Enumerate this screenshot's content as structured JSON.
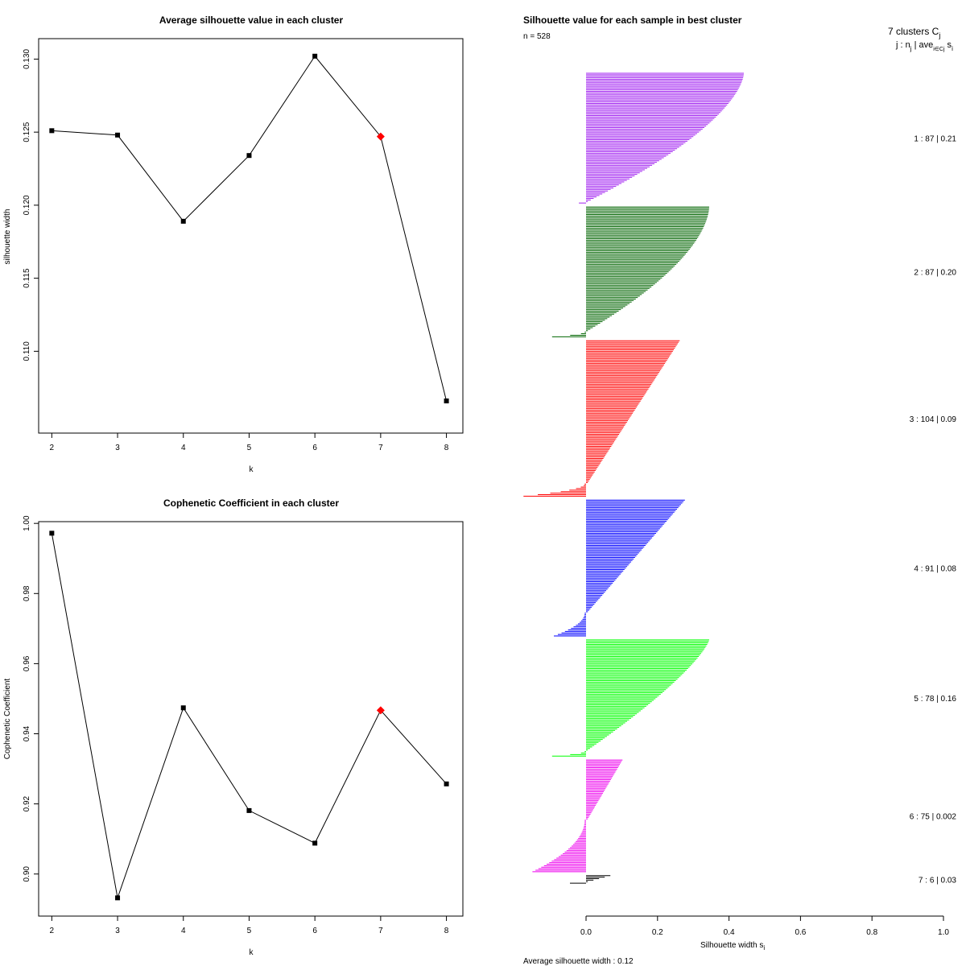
{
  "chart_data": [
    {
      "id": "avg_sil",
      "type": "line",
      "title": "Average silhouette value in each cluster",
      "xlabel": "k",
      "ylabel": "silhouette width",
      "x": [
        2,
        3,
        4,
        5,
        6,
        7,
        8
      ],
      "y": [
        0.1251,
        0.1248,
        0.1189,
        0.1234,
        0.1302,
        0.1247,
        0.1066
      ],
      "highlight_x": 7,
      "highlight_color": "#ff0000",
      "xlim": [
        1.8,
        8.25
      ],
      "ylim": [
        0.1044,
        0.1314
      ],
      "xticks": [
        2,
        3,
        4,
        5,
        6,
        7,
        8
      ],
      "xtick_labels": [
        "2",
        "3",
        "4",
        "5",
        "6",
        "7",
        "8"
      ],
      "yticks": [
        0.11,
        0.115,
        0.12,
        0.125,
        0.13
      ],
      "ytick_labels": [
        "0.110",
        "0.115",
        "0.120",
        "0.125",
        "0.130"
      ]
    },
    {
      "id": "cophenetic",
      "type": "line",
      "title": "Cophenetic Coefficient in each cluster",
      "xlabel": "k",
      "ylabel": "Cophenetic Coefficient",
      "x": [
        2,
        3,
        4,
        5,
        6,
        7,
        8
      ],
      "y": [
        0.9972,
        0.8932,
        0.9474,
        0.9181,
        0.9088,
        0.9467,
        0.9257
      ],
      "highlight_x": 7,
      "highlight_color": "#ff0000",
      "xlim": [
        1.8,
        8.25
      ],
      "ylim": [
        0.888,
        1.0005
      ],
      "xticks": [
        2,
        3,
        4,
        5,
        6,
        7,
        8
      ],
      "xtick_labels": [
        "2",
        "3",
        "4",
        "5",
        "6",
        "7",
        "8"
      ],
      "yticks": [
        0.9,
        0.92,
        0.94,
        0.96,
        0.98,
        1.0
      ],
      "ytick_labels": [
        "0.90",
        "0.92",
        "0.94",
        "0.96",
        "0.98",
        "1.00"
      ]
    },
    {
      "id": "silhouette",
      "type": "bar",
      "orientation": "horizontal",
      "title": "Silhouette value for each sample in best cluster",
      "n_label": "n = 528",
      "header_line1": "7 clusters  C",
      "header_sub1": "j",
      "header_line2": "j :  n",
      "header_sub2": "j",
      "header_line2b": " | ave",
      "header_sub3": "i∈Cj",
      "header_line2c": " s",
      "header_sub4": "i",
      "xlabel": "Silhouette width s",
      "xlabel_sub": "i",
      "avg_label": "Average silhouette width :  0.12",
      "xlim": [
        0,
        1
      ],
      "xticks": [
        0,
        0.2,
        0.4,
        0.6,
        0.8,
        1.0
      ],
      "xtick_labels": [
        "0.0",
        "0.2",
        "0.4",
        "0.6",
        "0.8",
        "1.0"
      ],
      "clusters": [
        {
          "label": "1 :  87  |  0.21",
          "n": 87,
          "color": "#a020f0",
          "max": 0.45,
          "min": -0.02,
          "neg": 1,
          "shape": 1.6
        },
        {
          "label": "2 :  87  |  0.20",
          "n": 87,
          "color": "#006400",
          "max": 0.35,
          "min": -0.095,
          "neg": 4,
          "shape": 1.7
        },
        {
          "label": "3 :  104  |  0.09",
          "n": 104,
          "color": "#ff0000",
          "max": 0.265,
          "min": -0.175,
          "neg": 9,
          "shape": 1.0
        },
        {
          "label": "4 :  91  |  0.08",
          "n": 91,
          "color": "#0000ff",
          "max": 0.28,
          "min": -0.09,
          "neg": 16,
          "shape": 1.0
        },
        {
          "label": "5 :  78  |  0.16",
          "n": 78,
          "color": "#00ff00",
          "max": 0.35,
          "min": -0.095,
          "neg": 4,
          "shape": 1.3
        },
        {
          "label": "6 :  75  |  0.002",
          "n": 75,
          "color": "#ee00ee",
          "max": 0.1,
          "min": -0.15,
          "neg": 35,
          "shape": 1.0
        },
        {
          "label": "7 :  6  |  0.03",
          "n": 6,
          "color": "#000000",
          "max": 0.065,
          "min": -0.045,
          "neg": 1,
          "shape": 1.0
        }
      ]
    }
  ]
}
